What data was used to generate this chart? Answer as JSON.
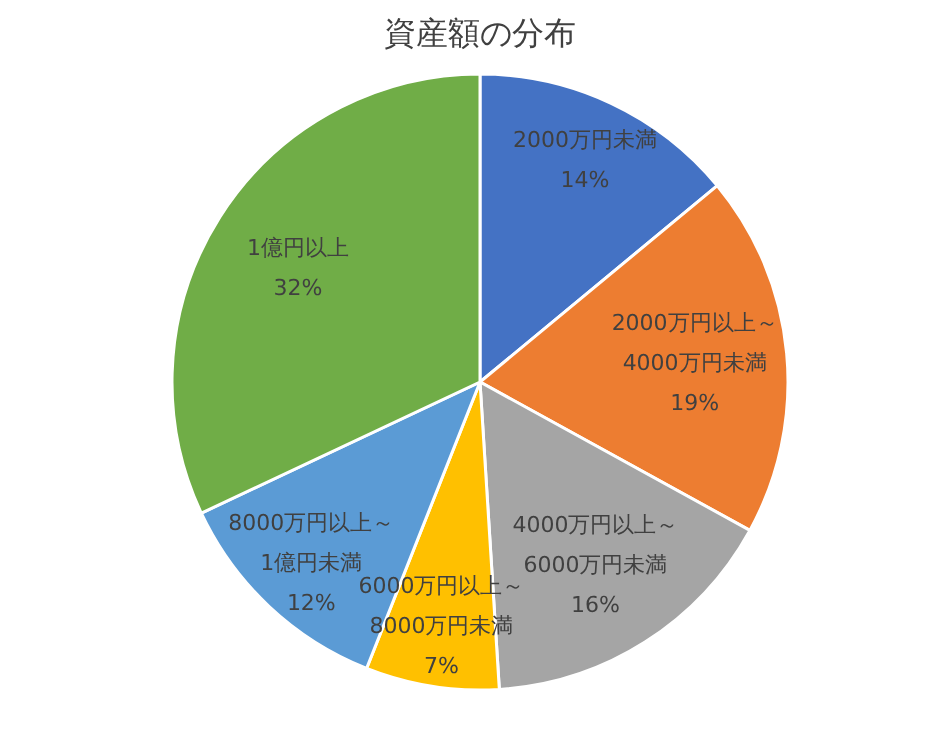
{
  "chart_data": {
    "type": "pie",
    "title": "資産額の分布",
    "categories": [
      "2000万円未満",
      "2000万円以上～4000万円未満",
      "4000万円以上～6000万円未満",
      "6000万円以上～8000万円未満",
      "8000万円以上～1億円未満",
      "1億円以上"
    ],
    "values": [
      14,
      19,
      16,
      7,
      12,
      32
    ],
    "colors": [
      "#4472c4",
      "#ed7d31",
      "#a5a5a5",
      "#ffc000",
      "#5b9bd5",
      "#70ad47"
    ],
    "value_labels": [
      "14%",
      "19%",
      "16%",
      "7%",
      "12%",
      "32%"
    ]
  }
}
